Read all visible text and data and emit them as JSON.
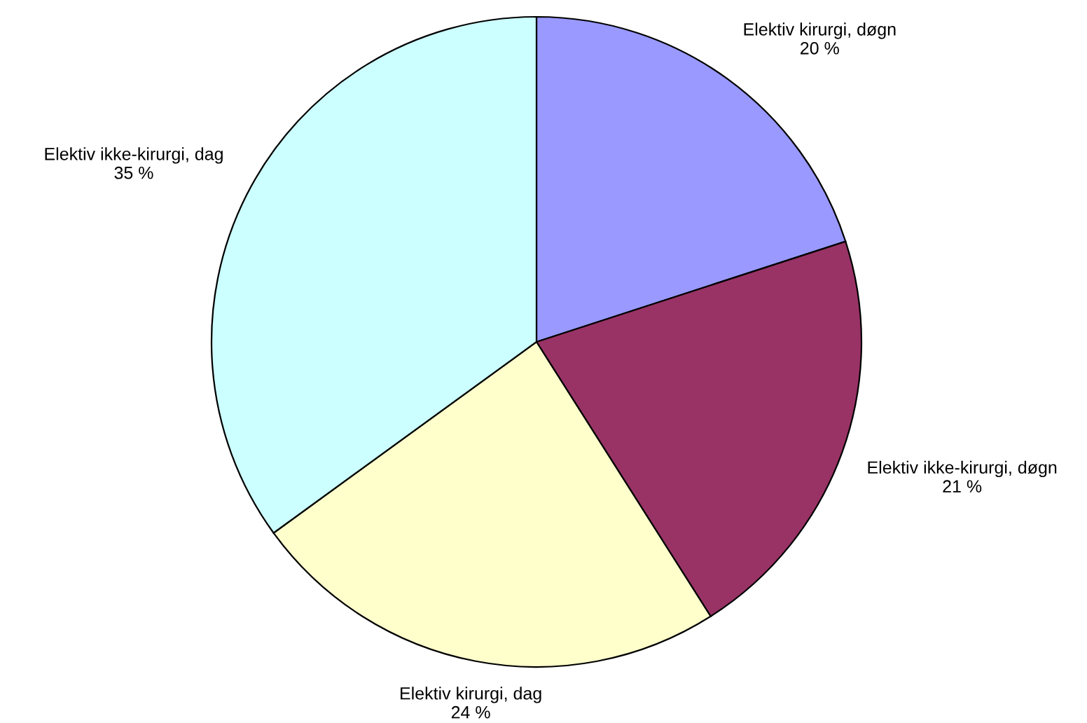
{
  "chart_data": {
    "type": "pie",
    "categories": [
      "Elektiv kirurgi, døgn",
      "Elektiv ikke-kirurgi, døgn",
      "Elektiv kirurgi, dag",
      "Elektiv ikke-kirurgi, dag"
    ],
    "values": [
      20,
      21,
      24,
      35
    ],
    "value_labels": [
      "20 %",
      "21 %",
      "24 %",
      "35 %"
    ],
    "colors": [
      "#9999ff",
      "#993366",
      "#ffffcc",
      "#ccffff"
    ],
    "legend": false
  }
}
